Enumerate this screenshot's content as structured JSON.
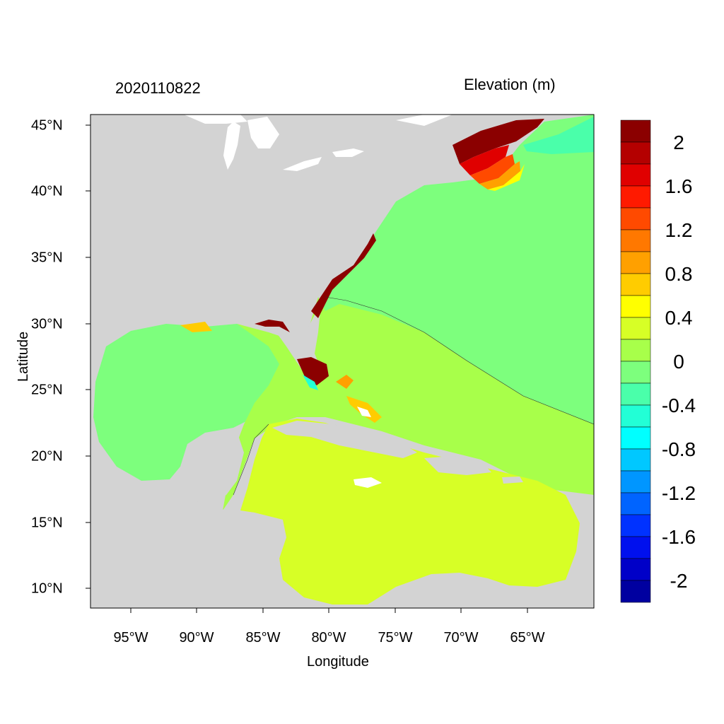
{
  "map": {
    "time_label": "2020110822",
    "variable_label": "Elevation (m)",
    "xlabel": "Longitude",
    "ylabel": "Latitude",
    "x_ticks": [
      "95°W",
      "90°W",
      "85°W",
      "80°W",
      "75°W",
      "70°W",
      "65°W"
    ],
    "y_ticks": [
      "45°N",
      "40°N",
      "35°N",
      "30°N",
      "25°N",
      "20°N",
      "15°N",
      "10°N"
    ],
    "colorbar_labels": [
      "2",
      "1.6",
      "1.2",
      "0.8",
      "0.4",
      "0",
      "-0.4",
      "-0.8",
      "-1.2",
      "-1.6",
      "-2"
    ],
    "colorbar_colors": [
      "#8b0000",
      "#b40000",
      "#e00000",
      "#ff1a00",
      "#ff4a00",
      "#ff7800",
      "#ffa000",
      "#ffcc00",
      "#ffff00",
      "#d7ff26",
      "#a8ff4a",
      "#7dff7d",
      "#4affaa",
      "#22ffd6",
      "#00ffff",
      "#00c8ff",
      "#0096ff",
      "#0064ff",
      "#0032ff",
      "#0010ee",
      "#0000c8",
      "#0000a0"
    ],
    "colors": {
      "land": "#d3d3d3",
      "lakes": "#ffffff",
      "atlantic_zero": "#7dff7d",
      "slight_positive": "#a8ff4a",
      "caribbean": "#d7ff26",
      "negative_small": "#4affaa"
    }
  }
}
